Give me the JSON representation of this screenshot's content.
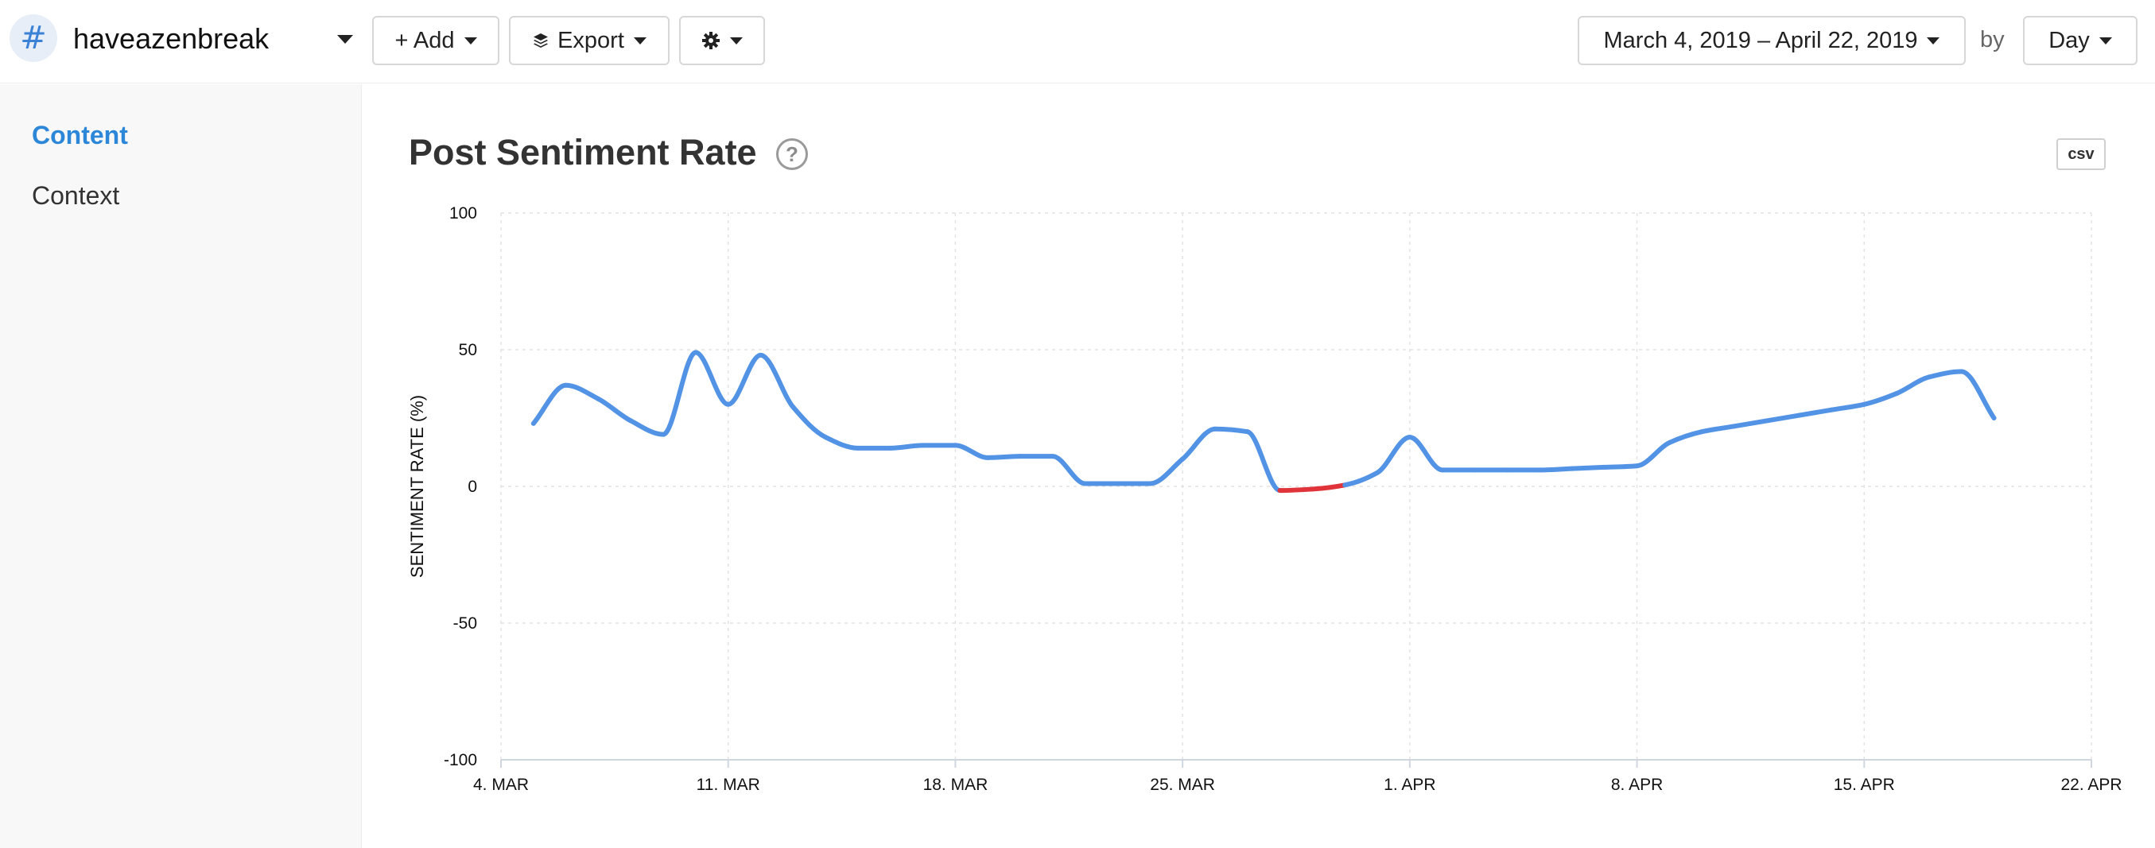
{
  "header": {
    "hash_symbol": "#",
    "profile_name": "haveazenbreak",
    "add_label": "+ Add",
    "export_label": "Export",
    "date_range": "March 4, 2019 – April 22, 2019",
    "by_label": "by",
    "granularity": "Day"
  },
  "sidebar": {
    "items": [
      {
        "label": "Content",
        "active": true
      },
      {
        "label": "Context",
        "active": false
      }
    ]
  },
  "panel": {
    "help_symbol": "?",
    "csv_label": "csv"
  },
  "colors": {
    "positive_line": "#5393e5",
    "negative_line": "#e0343a",
    "accent": "#2d87d8"
  },
  "chart_data": {
    "type": "line",
    "title": "Post Sentiment Rate",
    "xlabel": "",
    "ylabel": "SENTIMENT RATE (%)",
    "ylim": [
      -100,
      100
    ],
    "yticks": [
      "100",
      "50",
      "0",
      "-50",
      "-100"
    ],
    "xlim": [
      "2019-03-04",
      "2019-04-22"
    ],
    "xticks": [
      "4. MAR",
      "11. MAR",
      "18. MAR",
      "25. MAR",
      "1. APR",
      "8. APR",
      "15. APR",
      "22. APR"
    ],
    "grid": true,
    "series": [
      {
        "x": [
          "2019-03-05",
          "2019-03-06",
          "2019-03-07",
          "2019-03-08",
          "2019-03-09",
          "2019-03-10",
          "2019-03-11",
          "2019-03-12",
          "2019-03-13",
          "2019-03-14",
          "2019-03-15",
          "2019-03-16",
          "2019-03-17",
          "2019-03-18",
          "2019-03-19",
          "2019-03-20",
          "2019-03-21",
          "2019-03-22",
          "2019-03-23",
          "2019-03-24",
          "2019-03-25",
          "2019-03-26",
          "2019-03-27",
          "2019-03-28",
          "2019-03-29",
          "2019-03-30",
          "2019-03-31",
          "2019-04-01",
          "2019-04-02",
          "2019-04-03",
          "2019-04-04",
          "2019-04-05",
          "2019-04-06",
          "2019-04-07",
          "2019-04-08",
          "2019-04-09",
          "2019-04-10",
          "2019-04-11",
          "2019-04-12",
          "2019-04-13",
          "2019-04-14",
          "2019-04-15",
          "2019-04-16",
          "2019-04-17",
          "2019-04-18",
          "2019-04-19"
        ],
        "values": [
          23,
          37,
          32,
          24,
          19,
          49,
          30,
          48,
          29,
          18,
          14,
          14,
          15,
          15,
          10.5,
          11,
          11,
          1,
          1,
          1,
          10,
          21,
          20,
          -1.5,
          -1,
          0.5,
          5,
          18,
          6,
          6,
          6,
          6,
          6.5,
          7,
          7.5,
          16,
          20,
          22,
          24,
          26,
          28,
          30,
          34,
          40,
          42,
          25
        ]
      }
    ]
  }
}
